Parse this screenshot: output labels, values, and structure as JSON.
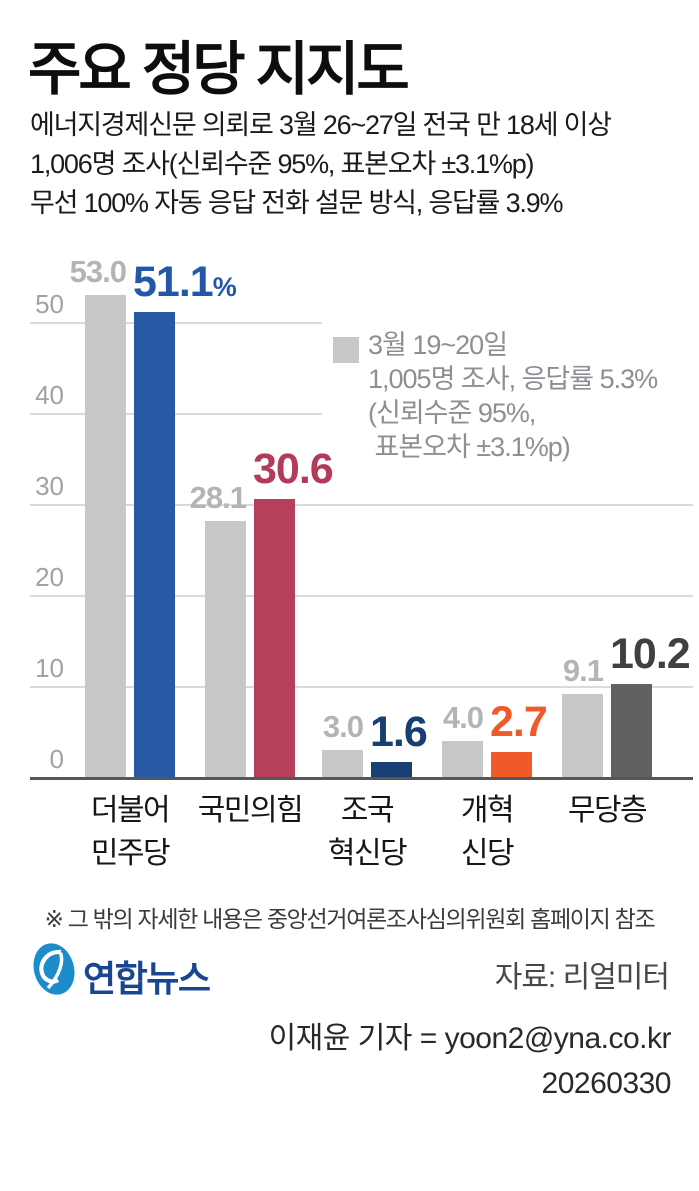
{
  "title": "주요 정당 지지도",
  "subtitle_lines": [
    "에너지경제신문 의뢰로 3월 26~27일 전국 만 18세 이상",
    "1,006명 조사(신뢰수준 95%, 표본오차 ±3.1%p)",
    "무선 100% 자동 응답 전화 설문 방식, 응답률 3.9%"
  ],
  "chart_data": {
    "type": "bar",
    "title": "주요 정당 지지도",
    "categories": [
      "더불어민주당",
      "국민의힘",
      "조국혁신당",
      "개혁신당",
      "무당층"
    ],
    "category_labels": [
      [
        "더불어",
        "민주당"
      ],
      [
        "국민의힘"
      ],
      [
        "조국",
        "혁신당"
      ],
      [
        "개혁",
        "신당"
      ],
      [
        "무당층"
      ]
    ],
    "series": [
      {
        "name": "3월 19~20일 조사",
        "values": [
          53.0,
          28.1,
          3.0,
          4.0,
          9.1
        ],
        "bar_colors": [
          "#c6c8ca",
          "#c6c8ca",
          "#c6c8ca",
          "#c6c8ca",
          "#c6c8ca"
        ],
        "label_colors": [
          "#b2b4b6",
          "#b2b4b6",
          "#b2b4b6",
          "#b2b4b6",
          "#b2b4b6"
        ]
      },
      {
        "name": "3월 26~27일 조사",
        "values": [
          51.1,
          30.6,
          1.6,
          2.7,
          10.2
        ],
        "bar_colors": [
          "#2759a6",
          "#b63f5c",
          "#173f73",
          "#f05a28",
          "#5f6163"
        ],
        "label_colors": [
          "#2357a7",
          "#b43a59",
          "#173f73",
          "#f05a28",
          "#3e4042"
        ]
      }
    ],
    "first_value_suffix": "%",
    "y_ticks": [
      0,
      10,
      20,
      30,
      40,
      50
    ],
    "ylim": [
      0,
      55
    ],
    "grid": "horizontal",
    "legend_position": "upper-right",
    "legend": {
      "swatch_color": "#c6c8ca",
      "lines": [
        "3월 19~20일",
        "1,005명 조사, 응답률 5.3%",
        "(신뢰수준 95%,",
        " 표본오차 ±3.1%p)"
      ]
    }
  },
  "footnote": "※ 그 밖의 자세한 내용은 중앙선거여론조사심의위원회 홈페이지 참조",
  "source": {
    "logo_text": "연합뉴스",
    "credit": "자료: 리얼미터"
  },
  "byline": {
    "reporter": "이재윤 기자 = yoon2@yna.co.kr",
    "date": "20260330"
  },
  "colors": {
    "grid": "#d9dadb",
    "axis_line": "#55575a",
    "axis_tick_label": "#a0a2a5",
    "prev_bar": "#c6c8ca",
    "democratic_blue": "#2759a6",
    "ppp_crimson": "#b63f5c",
    "rebuilding_navy": "#173f73",
    "reform_orange": "#f05a28",
    "independent_gray": "#5f6163",
    "logo_blue": "#1d8ccd",
    "logo_navy": "#1a4691"
  }
}
